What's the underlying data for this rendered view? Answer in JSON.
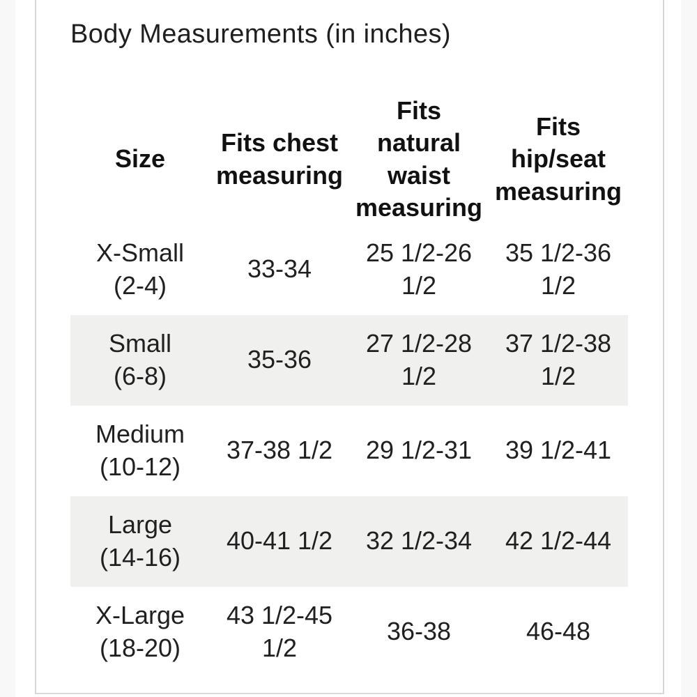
{
  "page": {
    "title": "Body Measurements (in inches)"
  },
  "colors": {
    "row_stripe": "#f0f0ef",
    "panel_border": "#d6d6d6",
    "text": "#1d1d1d",
    "background": "#ffffff"
  },
  "table": {
    "headers": [
      "Size",
      "Fits chest\nmeasuring",
      "Fits\nnatural\nwaist\nmeasuring",
      "Fits\nhip/seat\nmeasuring"
    ],
    "rows": [
      {
        "cells": [
          "X-Small\n(2-4)",
          "33-34",
          "25 1/2-26\n1/2",
          "35 1/2-36\n1/2"
        ]
      },
      {
        "cells": [
          "Small\n(6-8)",
          "35-36",
          "27 1/2-28\n1/2",
          "37 1/2-38\n1/2"
        ]
      },
      {
        "cells": [
          "Medium\n(10-12)",
          "37-38 1/2",
          "29 1/2-31",
          "39 1/2-41"
        ]
      },
      {
        "cells": [
          "Large\n(14-16)",
          "40-41 1/2",
          "32 1/2-34",
          "42 1/2-44"
        ]
      },
      {
        "cells": [
          "X-Large\n(18-20)",
          "43 1/2-45\n1/2",
          "36-38",
          "46-48"
        ]
      }
    ]
  }
}
